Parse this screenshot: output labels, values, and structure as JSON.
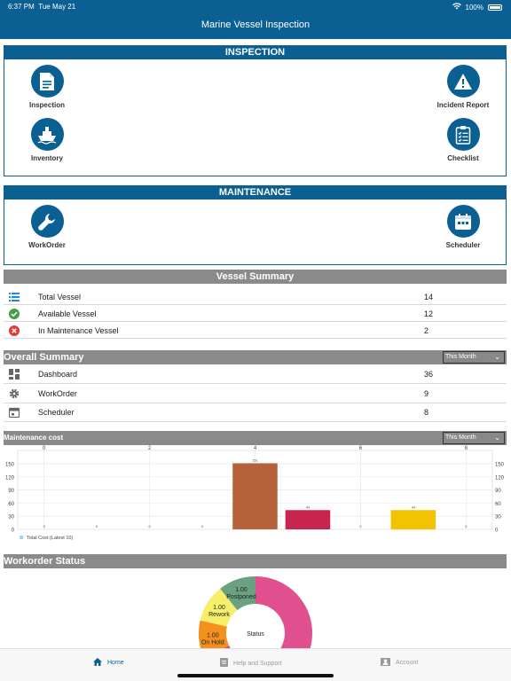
{
  "status_bar": {
    "time": "6:37 PM",
    "date": "Tue May 21",
    "battery": "100%"
  },
  "app_title": "Marine Vessel Inspection",
  "inspection": {
    "title": "INSPECTION",
    "tiles": [
      {
        "label": "Inspection",
        "icon": "document-icon"
      },
      {
        "label": "Incident Report",
        "icon": "warning-icon"
      },
      {
        "label": "Inventory",
        "icon": "ship-icon"
      },
      {
        "label": "Checklist",
        "icon": "clipboard-icon"
      }
    ]
  },
  "maintenance": {
    "title": "MAINTENANCE",
    "tiles": [
      {
        "label": "WorkOrder",
        "icon": "wrench-icon"
      },
      {
        "label": "Scheduler",
        "icon": "calendar-icon"
      }
    ]
  },
  "vessel_summary": {
    "title": "Vessel Summary",
    "rows": [
      {
        "label": "Total Vessel",
        "value": "14",
        "icon": "list-icon",
        "color": "#1e88e5"
      },
      {
        "label": "Available Vessel",
        "value": "12",
        "icon": "check-circle-icon",
        "color": "#43a047"
      },
      {
        "label": "In Maintenance Vessel",
        "value": "2",
        "icon": "x-circle-icon",
        "color": "#e53935"
      }
    ]
  },
  "overall_summary": {
    "title": "Overall Summary",
    "filter": "This Month",
    "rows": [
      {
        "label": "Dashboard",
        "value": "36",
        "icon": "dashboard-icon"
      },
      {
        "label": "WorkOrder",
        "value": "9",
        "icon": "gear-icon"
      },
      {
        "label": "Scheduler",
        "value": "8",
        "icon": "calendar-icon"
      }
    ]
  },
  "maintenance_cost": {
    "title": "Maintenance cost",
    "filter": "This Month"
  },
  "chart_data": [
    {
      "type": "bar",
      "title": "Maintenance cost",
      "x_ticks": [
        "0",
        "2",
        "4",
        "6",
        "8"
      ],
      "y_ticks": [
        "150",
        "120",
        "90",
        "60",
        "30",
        "0"
      ],
      "ylim": [
        0,
        160
      ],
      "categories": [
        0,
        1,
        2,
        3,
        4,
        5,
        6,
        7,
        8
      ],
      "values": [
        0,
        0,
        0,
        0,
        151,
        44,
        0,
        44,
        0
      ],
      "data_labels": [
        "0",
        "0",
        "0",
        "0",
        "151",
        "44",
        "0",
        "44",
        "0"
      ],
      "bar_colors": [
        "#999999",
        "#999999",
        "#999999",
        "#999999",
        "#b5623a",
        "#c8254e",
        "#999999",
        "#f3c200",
        "#999999"
      ],
      "series": [
        {
          "name": "Total Cost (Latest 10)",
          "values": [
            0,
            0,
            0,
            0,
            151,
            44,
            0,
            44,
            0
          ]
        }
      ],
      "legend": "bottom-left",
      "grid": true
    },
    {
      "type": "pie",
      "title": "Workorder Status",
      "center_label": "Status",
      "slices": [
        {
          "label": "Postponed",
          "value": 1.0,
          "display": "1.00",
          "color": "#6aa281"
        },
        {
          "label": "Rework",
          "value": 1.0,
          "display": "1.00",
          "color": "#f5ef6a"
        },
        {
          "label": "On Hold",
          "value": 1.0,
          "display": "1.00",
          "color": "#f3901e"
        },
        {
          "label": "",
          "value": 0.35,
          "display": "",
          "color": "#b84fa0"
        },
        {
          "label": "",
          "value": 6.0,
          "display": "",
          "color": "#e0508e"
        }
      ]
    }
  ],
  "workorder_status": {
    "title": "Workorder Status"
  },
  "tabs": [
    {
      "label": "Home",
      "icon": "home-icon",
      "active": true
    },
    {
      "label": "Help and Support",
      "icon": "help-icon",
      "active": false
    },
    {
      "label": "Account",
      "icon": "account-icon",
      "active": false
    }
  ]
}
